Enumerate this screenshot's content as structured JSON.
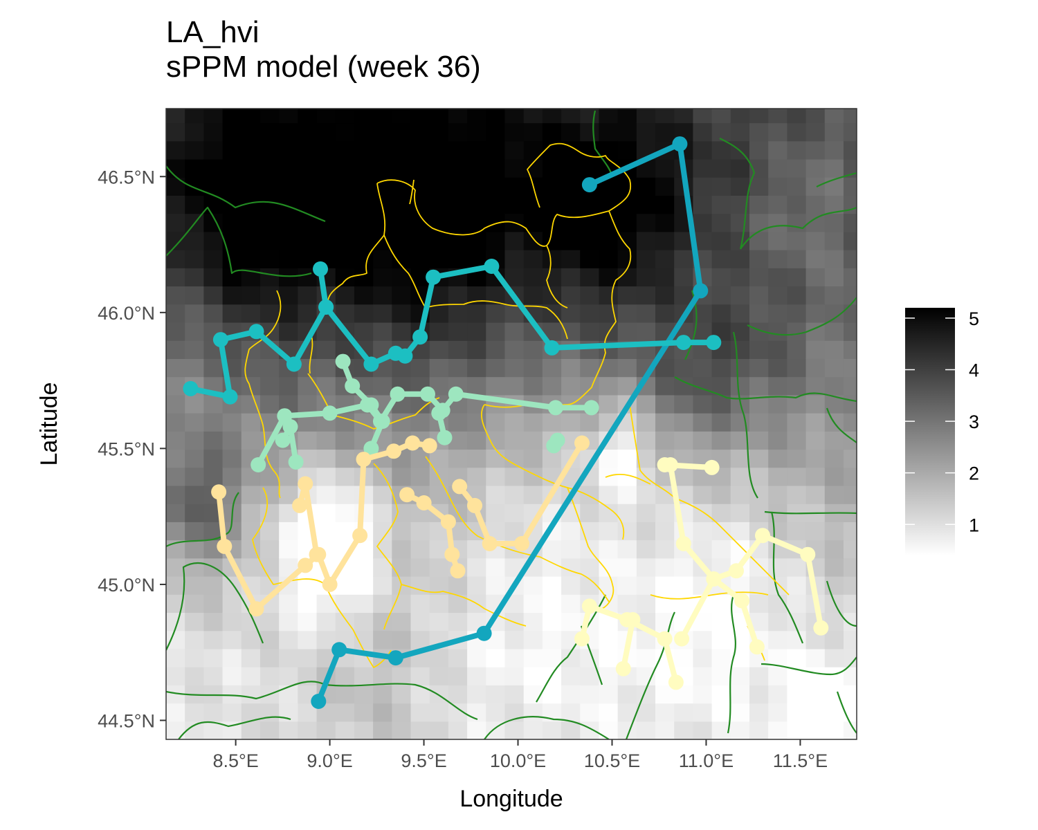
{
  "title": {
    "line1": "LA_hvi",
    "line2": "sPPM model (week 36)"
  },
  "chart_data": {
    "type": "heatmap",
    "title": "LA_hvi",
    "subtitle": "sPPM model (week 36)",
    "xlabel": "Longitude",
    "ylabel": "Latitude",
    "xlim": [
      8.13,
      11.8
    ],
    "ylim": [
      44.43,
      46.75
    ],
    "xticks": [
      {
        "value": 8.5,
        "label": "8.5°E"
      },
      {
        "value": 9.0,
        "label": "9.0°E"
      },
      {
        "value": 9.5,
        "label": "9.5°E"
      },
      {
        "value": 10.0,
        "label": "10.0°E"
      },
      {
        "value": 10.5,
        "label": "10.5°E"
      },
      {
        "value": 11.0,
        "label": "11.0°E"
      },
      {
        "value": 11.5,
        "label": "11.5°E"
      }
    ],
    "yticks": [
      {
        "value": 44.5,
        "label": "44.5°N"
      },
      {
        "value": 45.0,
        "label": "45.0°N"
      },
      {
        "value": 45.5,
        "label": "45.5°N"
      },
      {
        "value": 46.0,
        "label": "46.0°N"
      },
      {
        "value": 46.5,
        "label": "46.5°N"
      }
    ],
    "grid": false,
    "legend": {
      "position": "right",
      "range": [
        0.4,
        5.2
      ],
      "ticks": [
        1,
        2,
        3,
        4,
        5
      ],
      "gradient": [
        "#ffffff",
        "#000000"
      ]
    },
    "colors": {
      "panel_border": "#333333",
      "admin_yellow": "#ffd700",
      "admin_green": "#228b22",
      "cluster_teal": "#13a6be",
      "cluster_cyan": "#1cbfc2",
      "cluster_mint": "#9de6bf",
      "cluster_peach": "#ffe39c",
      "cluster_cream": "#fffcc0"
    },
    "raster": {
      "lon_start": 8.13,
      "lat_start": 44.43,
      "cell_lon": 0.1,
      "cell_lat": 0.0667,
      "field": "smooth intensity surface; dark in north-west Alps, light over central Po plain"
    },
    "series": [
      {
        "color": "#13a6be",
        "points": [
          [
            10.38,
            46.47
          ],
          [
            10.86,
            46.62
          ],
          [
            10.97,
            46.08
          ],
          [
            9.82,
            44.82
          ],
          [
            9.35,
            44.73
          ],
          [
            9.05,
            44.76
          ],
          [
            8.94,
            44.57
          ]
        ]
      },
      {
        "color": "#1cbfc2",
        "points": [
          [
            8.95,
            46.16
          ],
          [
            8.98,
            46.02
          ],
          [
            9.22,
            45.81
          ],
          [
            9.35,
            45.85
          ],
          [
            9.4,
            45.84
          ],
          [
            9.48,
            45.91
          ],
          [
            9.55,
            46.13
          ],
          [
            9.86,
            46.17
          ],
          [
            10.18,
            45.87
          ],
          [
            10.88,
            45.89
          ],
          [
            11.04,
            45.89
          ]
        ]
      },
      {
        "color": "#1cbfc2",
        "points": [
          [
            8.98,
            46.02
          ],
          [
            8.81,
            45.81
          ],
          [
            8.61,
            45.93
          ],
          [
            8.42,
            45.9
          ],
          [
            8.47,
            45.69
          ],
          [
            8.26,
            45.72
          ]
        ]
      },
      {
        "color": "#9de6bf",
        "points": [
          [
            9.07,
            45.82
          ],
          [
            9.12,
            45.73
          ],
          [
            9.22,
            45.66
          ],
          [
            9.28,
            45.6
          ],
          [
            9.22,
            45.5
          ]
        ]
      },
      {
        "color": "#9de6bf",
        "points": [
          [
            8.62,
            45.44
          ],
          [
            8.76,
            45.62
          ],
          [
            9.0,
            45.63
          ],
          [
            9.2,
            45.66
          ],
          [
            9.27,
            45.6
          ],
          [
            9.36,
            45.7
          ],
          [
            9.52,
            45.7
          ],
          [
            9.6,
            45.64
          ],
          [
            9.67,
            45.7
          ],
          [
            10.2,
            45.65
          ],
          [
            10.39,
            45.65
          ]
        ]
      },
      {
        "color": "#9de6bf",
        "points": [
          [
            8.75,
            45.53
          ],
          [
            8.79,
            45.58
          ],
          [
            8.82,
            45.45
          ]
        ]
      },
      {
        "color": "#9de6bf",
        "points": [
          [
            9.58,
            45.63
          ],
          [
            9.61,
            45.54
          ]
        ]
      },
      {
        "color": "#9de6bf",
        "points": [
          [
            10.21,
            45.53
          ],
          [
            10.19,
            45.51
          ]
        ]
      },
      {
        "color": "#ffe39c",
        "points": [
          [
            8.41,
            45.34
          ],
          [
            8.44,
            45.14
          ],
          [
            8.61,
            44.91
          ],
          [
            8.87,
            45.07
          ],
          [
            8.94,
            45.11
          ],
          [
            9.0,
            45.0
          ],
          [
            9.16,
            45.18
          ],
          [
            9.18,
            45.46
          ],
          [
            9.34,
            45.49
          ],
          [
            9.44,
            45.52
          ],
          [
            9.53,
            45.51
          ]
        ]
      },
      {
        "color": "#ffe39c",
        "points": [
          [
            8.84,
            45.29
          ],
          [
            8.87,
            45.37
          ],
          [
            8.93,
            45.11
          ]
        ]
      },
      {
        "color": "#ffe39c",
        "points": [
          [
            9.41,
            45.33
          ],
          [
            9.5,
            45.3
          ],
          [
            9.63,
            45.23
          ],
          [
            9.65,
            45.11
          ],
          [
            9.68,
            45.05
          ]
        ]
      },
      {
        "color": "#ffe39c",
        "points": [
          [
            9.69,
            45.36
          ],
          [
            9.77,
            45.29
          ],
          [
            9.85,
            45.15
          ],
          [
            10.02,
            45.15
          ],
          [
            10.34,
            45.52
          ]
        ]
      },
      {
        "color": "#fffcc0",
        "points": [
          [
            10.78,
            45.44
          ],
          [
            11.03,
            45.43
          ]
        ]
      },
      {
        "color": "#fffcc0",
        "points": [
          [
            10.81,
            45.44
          ],
          [
            10.88,
            45.15
          ],
          [
            11.04,
            45.02
          ],
          [
            11.16,
            45.05
          ],
          [
            11.3,
            45.18
          ],
          [
            11.54,
            45.11
          ],
          [
            11.61,
            44.84
          ]
        ]
      },
      {
        "color": "#fffcc0",
        "points": [
          [
            10.34,
            44.8
          ],
          [
            10.38,
            44.92
          ],
          [
            10.58,
            44.87
          ],
          [
            10.78,
            44.8
          ],
          [
            10.84,
            44.64
          ]
        ]
      },
      {
        "color": "#fffcc0",
        "points": [
          [
            10.61,
            44.87
          ],
          [
            10.56,
            44.69
          ]
        ]
      },
      {
        "color": "#fffcc0",
        "points": [
          [
            10.87,
            44.8
          ],
          [
            11.04,
            45.02
          ],
          [
            11.19,
            44.94
          ],
          [
            11.27,
            44.77
          ]
        ]
      }
    ]
  }
}
